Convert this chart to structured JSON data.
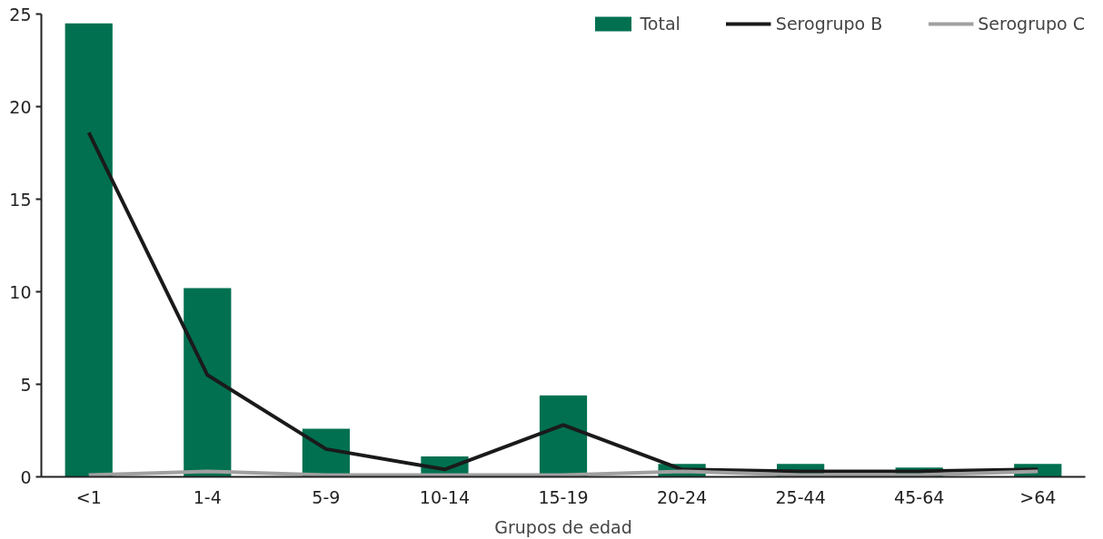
{
  "chart_data": {
    "type": "bar",
    "xlabel": "Grupos de edad",
    "categories": [
      "<1",
      "1-4",
      "5-9",
      "10-14",
      "15-19",
      "20-24",
      "25-44",
      "45-64",
      ">64"
    ],
    "series": [
      {
        "name": "Total",
        "color": "#007050",
        "values": [
          24.5,
          10.2,
          2.6,
          1.1,
          4.4,
          0.7,
          0.7,
          0.5,
          0.7
        ]
      },
      {
        "name": "Serogrupo B",
        "type": "line",
        "color": "#1a1a1a",
        "values": [
          18.6,
          5.5,
          1.5,
          0.4,
          2.8,
          0.4,
          0.3,
          0.3,
          0.4
        ]
      },
      {
        "name": "Serogrupo C",
        "type": "line",
        "color": "#a0a0a0",
        "values": [
          0.1,
          0.3,
          0.1,
          0.1,
          0.1,
          0.3,
          0.1,
          0.1,
          0.3
        ]
      }
    ],
    "ylim": [
      0,
      25
    ],
    "yticks": [
      0,
      5,
      10,
      15,
      20,
      25
    ],
    "grid": false,
    "legend": "top right",
    "marker": "none",
    "line_style": "solid"
  }
}
